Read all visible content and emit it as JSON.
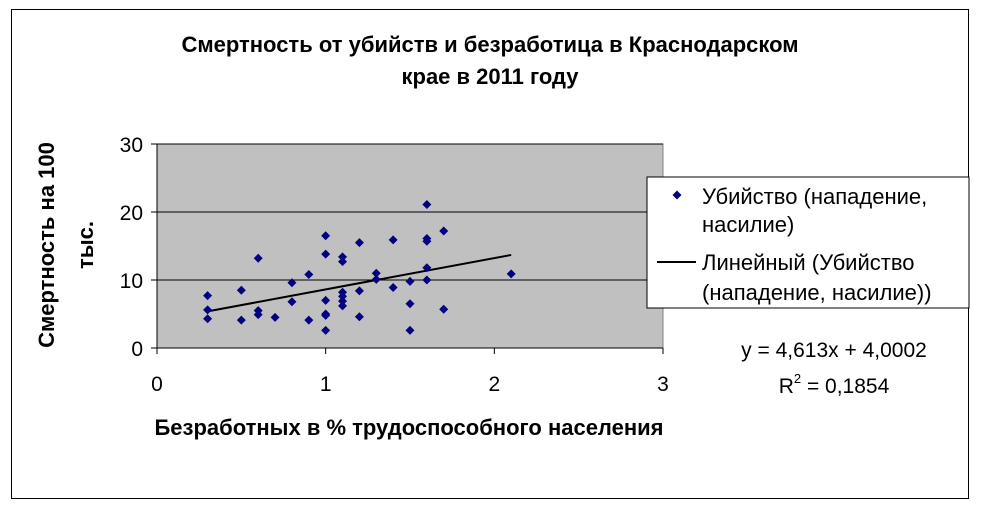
{
  "chart_data": {
    "type": "scatter",
    "title_lines": [
      "Смертность от убийств и безработица в Краснодарском",
      "крае в 2011 году"
    ],
    "xlabel": "Безработных в % трудоспособного населения",
    "ylabel_lines": [
      "Смертность на 100",
      "тыс."
    ],
    "xlim": [
      0,
      3
    ],
    "ylim": [
      0,
      30
    ],
    "x_ticks": [
      "0",
      "1",
      "2",
      "3"
    ],
    "y_ticks": [
      "0",
      "10",
      "20",
      "30"
    ],
    "grid": "horizontal",
    "plot_background": "#c0c0c0",
    "marker_color": "#000080",
    "series": [
      {
        "name": "Убийство (нападение, насилие)",
        "points": [
          [
            0.3,
            7.7
          ],
          [
            0.3,
            5.6
          ],
          [
            0.3,
            4.3
          ],
          [
            0.5,
            8.5
          ],
          [
            0.5,
            4.1
          ],
          [
            0.6,
            13.2
          ],
          [
            0.6,
            5.5
          ],
          [
            0.6,
            4.9
          ],
          [
            0.7,
            4.5
          ],
          [
            0.8,
            9.6
          ],
          [
            0.8,
            6.8
          ],
          [
            0.9,
            10.8
          ],
          [
            0.9,
            4.1
          ],
          [
            1.0,
            16.5
          ],
          [
            1.0,
            13.8
          ],
          [
            1.0,
            7.0
          ],
          [
            1.0,
            5.0
          ],
          [
            1.0,
            4.8
          ],
          [
            1.0,
            2.6
          ],
          [
            1.1,
            13.4
          ],
          [
            1.1,
            12.7
          ],
          [
            1.1,
            8.2
          ],
          [
            1.1,
            7.6
          ],
          [
            1.1,
            6.9
          ],
          [
            1.1,
            6.2
          ],
          [
            1.2,
            15.5
          ],
          [
            1.2,
            8.4
          ],
          [
            1.2,
            4.6
          ],
          [
            1.3,
            11.0
          ],
          [
            1.3,
            10.1
          ],
          [
            1.4,
            15.9
          ],
          [
            1.4,
            8.9
          ],
          [
            1.5,
            9.8
          ],
          [
            1.5,
            6.5
          ],
          [
            1.5,
            2.6
          ],
          [
            1.6,
            21.1
          ],
          [
            1.6,
            16.1
          ],
          [
            1.6,
            15.7
          ],
          [
            1.6,
            11.8
          ],
          [
            1.6,
            10.0
          ],
          [
            1.7,
            17.2
          ],
          [
            1.7,
            5.7
          ],
          [
            2.1,
            10.9
          ]
        ]
      }
    ],
    "trendline": {
      "name": "Линейный (Убийство (нападение, насилие))",
      "slope": 4.613,
      "intercept": 4.0002,
      "x_range": [
        0.3,
        2.1
      ]
    },
    "legend": {
      "position": "right",
      "entries": [
        {
          "lines": [
            "Убийство (нападение,",
            "насилие)"
          ]
        },
        {
          "lines": [
            "Линейный (Убийство",
            "(нападение, насилие))"
          ]
        }
      ]
    },
    "equation": "y = 4,613x + 4,0002",
    "r2": {
      "base": "R",
      "sup": "2",
      "rest": " = 0,1854"
    }
  }
}
